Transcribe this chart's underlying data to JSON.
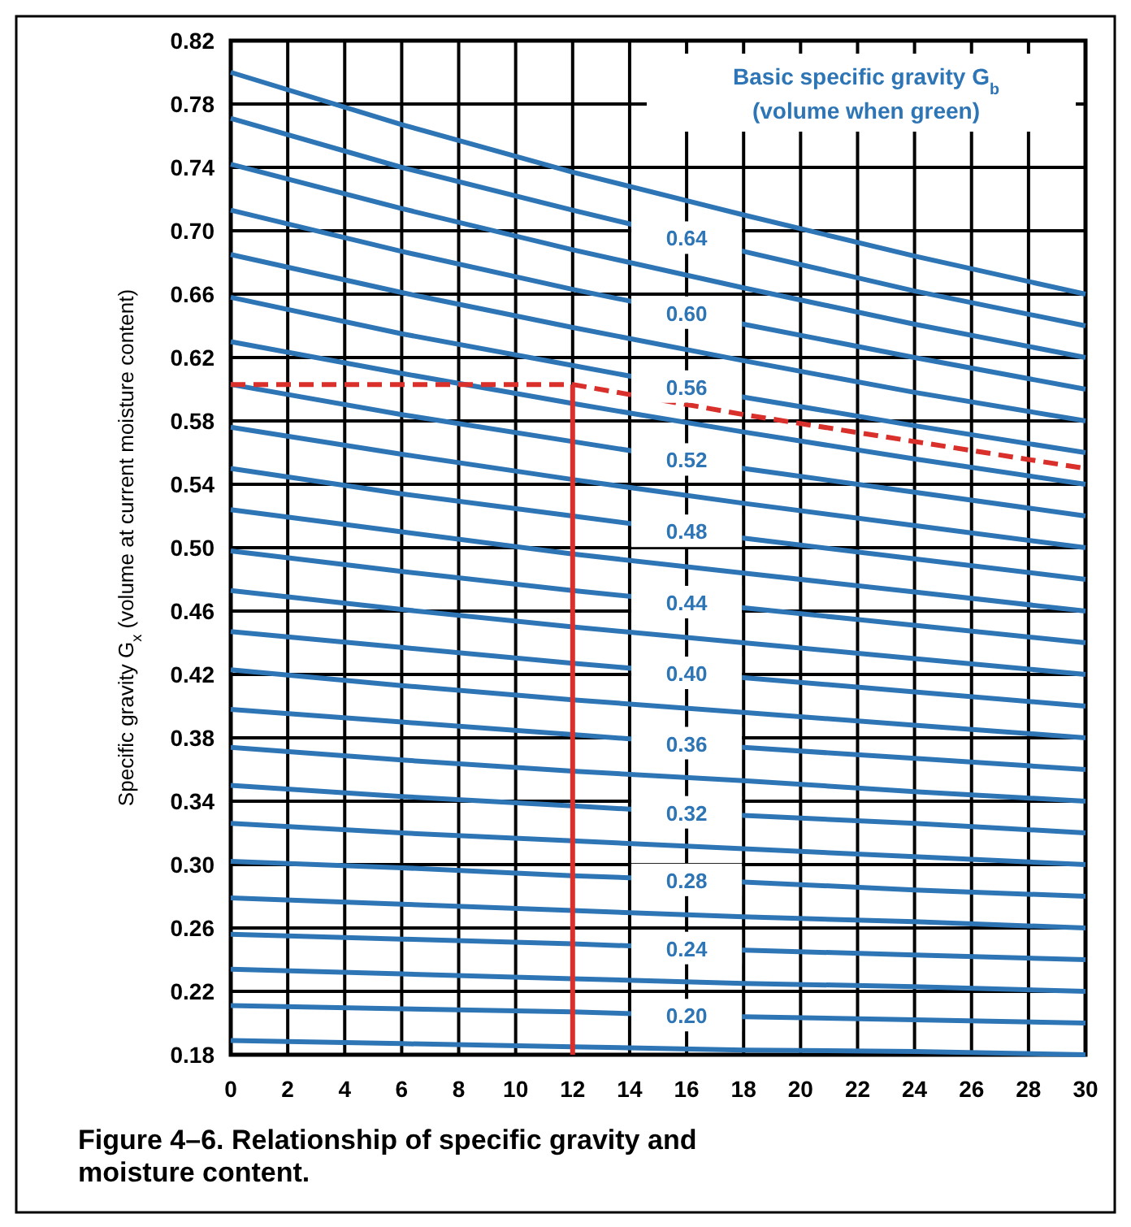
{
  "chart_data": {
    "type": "line",
    "title": "Figure 4–6. Relationship of specific gravity and moisture content.",
    "ylabel": "Specific gravity G$_{x}$ (volume at current moisture content)",
    "annotations": [
      "Basic specific gravity G$_{b}$",
      "(volume when green)"
    ],
    "x": [
      0,
      6,
      12,
      18,
      24,
      30
    ],
    "xlim": [
      0,
      30
    ],
    "xticks": [
      0,
      2,
      4,
      6,
      8,
      10,
      12,
      14,
      16,
      18,
      20,
      22,
      24,
      26,
      28,
      30
    ],
    "ylim": [
      0.18,
      0.82
    ],
    "yticks": [
      0.18,
      0.22,
      0.26,
      {
        "value": 0.3,
        "label": "0.30"
      },
      0.34,
      0.38,
      0.42,
      0.46,
      {
        "value": 0.5,
        "label": "0.50"
      },
      0.54,
      0.58,
      0.62,
      0.66,
      {
        "value": 0.7,
        "label": "0.70"
      },
      0.74,
      0.78,
      0.82
    ],
    "grid": true,
    "legend": false,
    "line_style": "solid",
    "series": [
      {
        "color": "#2e75b6",
        "values": [
          0.189,
          0.187,
          0.185,
          0.183,
          0.182,
          0.18
        ]
      },
      {
        "name": "0.20",
        "color": "#2e75b6",
        "values": [
          0.211,
          0.209,
          0.207,
          0.204,
          0.202,
          0.2
        ]
      },
      {
        "color": "#2e75b6",
        "values": [
          0.234,
          0.231,
          0.228,
          0.225,
          0.223,
          0.22
        ]
      },
      {
        "name": "0.24",
        "color": "#2e75b6",
        "values": [
          0.256,
          0.253,
          0.25,
          0.246,
          0.243,
          0.24
        ]
      },
      {
        "color": "#2e75b6",
        "values": [
          0.279,
          0.275,
          0.271,
          0.267,
          0.264,
          0.26
        ]
      },
      {
        "name": "0.28",
        "color": "#2e75b6",
        "values": [
          0.302,
          0.298,
          0.293,
          0.289,
          0.284,
          0.28
        ]
      },
      {
        "color": "#2e75b6",
        "values": [
          0.326,
          0.32,
          0.315,
          0.31,
          0.305,
          0.3
        ]
      },
      {
        "name": "0.32",
        "color": "#2e75b6",
        "values": [
          0.35,
          0.343,
          0.337,
          0.331,
          0.326,
          0.32
        ]
      },
      {
        "color": "#2e75b6",
        "values": [
          0.374,
          0.366,
          0.359,
          0.353,
          0.346,
          0.34
        ]
      },
      {
        "name": "0.36",
        "color": "#2e75b6",
        "values": [
          0.398,
          0.39,
          0.382,
          0.374,
          0.367,
          0.36
        ]
      },
      {
        "color": "#2e75b6",
        "values": [
          0.423,
          0.413,
          0.404,
          0.396,
          0.388,
          0.38
        ]
      },
      {
        "name": "0.40",
        "color": "#2e75b6",
        "values": [
          0.447,
          0.437,
          0.427,
          0.418,
          0.409,
          0.4
        ]
      },
      {
        "color": "#2e75b6",
        "values": [
          0.473,
          0.461,
          0.45,
          0.44,
          0.43,
          0.42
        ]
      },
      {
        "name": "0.44",
        "color": "#2e75b6",
        "values": [
          0.498,
          0.485,
          0.473,
          0.462,
          0.451,
          0.44
        ]
      },
      {
        "color": "#2e75b6",
        "values": [
          0.524,
          0.51,
          0.496,
          0.484,
          0.472,
          0.46
        ]
      },
      {
        "name": "0.48",
        "color": "#2e75b6",
        "values": [
          0.55,
          0.534,
          0.52,
          0.506,
          0.493,
          0.48
        ]
      },
      {
        "color": "#2e75b6",
        "values": [
          0.576,
          0.559,
          0.543,
          0.528,
          0.514,
          0.5
        ]
      },
      {
        "name": "0.52",
        "color": "#2e75b6",
        "values": [
          0.603,
          0.584,
          0.567,
          0.55,
          0.535,
          0.52
        ]
      },
      {
        "color": "#2e75b6",
        "values": [
          0.63,
          0.61,
          0.591,
          0.573,
          0.556,
          0.54
        ]
      },
      {
        "name": "0.56",
        "color": "#2e75b6",
        "values": [
          0.658,
          0.635,
          0.615,
          0.595,
          0.577,
          0.56
        ]
      },
      {
        "color": "#2e75b6",
        "values": [
          0.685,
          0.661,
          0.639,
          0.618,
          0.598,
          0.58
        ]
      },
      {
        "name": "0.60",
        "color": "#2e75b6",
        "values": [
          0.713,
          0.687,
          0.663,
          0.641,
          0.62,
          0.6
        ]
      },
      {
        "color": "#2e75b6",
        "values": [
          0.742,
          0.714,
          0.688,
          0.664,
          0.641,
          0.62
        ]
      },
      {
        "name": "0.64",
        "color": "#2e75b6",
        "values": [
          0.771,
          0.74,
          0.713,
          0.687,
          0.662,
          0.64
        ]
      },
      {
        "color": "#2e75b6",
        "values": [
          0.8,
          0.767,
          0.737,
          0.71,
          0.684,
          0.66
        ]
      },
      {
        "color": "#d9302c",
        "line_style": "dashed",
        "x": [
          0,
          12,
          18,
          24,
          30
        ],
        "values": [
          0.603,
          0.603,
          0.584,
          0.567,
          0.55
        ]
      },
      {
        "color": "#d9302c",
        "line_style": "solid",
        "x": [
          12,
          12
        ],
        "values": [
          0.18,
          0.603
        ]
      }
    ]
  }
}
